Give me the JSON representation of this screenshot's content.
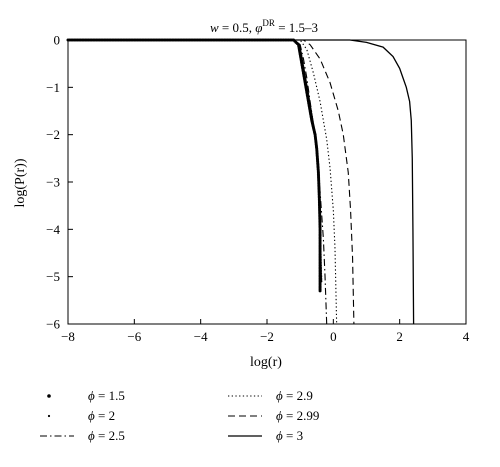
{
  "chart_data": {
    "type": "line",
    "title": "w = 0.5, φ^DR = 1.5–3",
    "title_parts": {
      "w_symbol": "w",
      "w_eq": " = 0.5, ",
      "phi_symbol": "φ",
      "phi_sup": "DR",
      "phi_range": " = 1.5–3"
    },
    "xlabel": "log(r)",
    "ylabel": "log(P(r))",
    "xlim": [
      -8,
      4
    ],
    "ylim": [
      -6,
      0
    ],
    "xticks": [
      -8,
      -6,
      -4,
      -2,
      0,
      2,
      4
    ],
    "yticks": [
      0,
      -1,
      -2,
      -3,
      -4,
      -5,
      -6
    ],
    "xtick_labels": [
      "−8",
      "−6",
      "−4",
      "−2",
      "0",
      "2",
      "4"
    ],
    "ytick_labels": [
      "0",
      "−1",
      "−2",
      "−3",
      "−4",
      "−5",
      "−6"
    ],
    "grid": false,
    "legend_placement": "bottom",
    "series": [
      {
        "name": "ϕ = 1.5",
        "symbol": "ϕ",
        "value_text": " = 1.5",
        "style": "large-dots",
        "color": "#000000",
        "x": [
          -8.0,
          -7.0,
          -6.0,
          -5.0,
          -4.0,
          -3.0,
          -2.0,
          -1.5,
          -1.2,
          -1.05,
          -0.95,
          -0.85,
          -0.75,
          -0.7,
          -0.65,
          -0.6,
          -0.55,
          -0.5,
          -0.45,
          -0.42,
          -0.4,
          -0.4,
          -0.4,
          -0.4,
          -0.4
        ],
        "y": [
          0,
          0,
          0,
          0,
          0,
          0,
          0,
          0,
          0,
          -0.1,
          -0.5,
          -0.9,
          -1.3,
          -1.5,
          -1.7,
          -1.85,
          -2.0,
          -2.3,
          -2.8,
          -3.4,
          -4.0,
          -4.5,
          -4.9,
          -5.1,
          -5.3
        ]
      },
      {
        "name": "ϕ = 2",
        "symbol": "ϕ",
        "value_text": " = 2",
        "style": "small-dots",
        "color": "#000000",
        "x": [
          -8.0,
          -7.0,
          -6.0,
          -5.0,
          -4.0,
          -3.0,
          -2.0,
          -1.5,
          -1.2,
          -1.02,
          -0.92,
          -0.82,
          -0.72,
          -0.66,
          -0.6,
          -0.55,
          -0.5,
          -0.45,
          -0.42,
          -0.4,
          -0.38,
          -0.37,
          -0.36
        ],
        "y": [
          0,
          0,
          0,
          0,
          0,
          0,
          0,
          0,
          0,
          -0.1,
          -0.5,
          -0.9,
          -1.3,
          -1.55,
          -1.8,
          -2.0,
          -2.4,
          -2.9,
          -3.5,
          -4.1,
          -4.6,
          -4.9,
          -5.1
        ]
      },
      {
        "name": "ϕ = 2.5",
        "symbol": "ϕ",
        "value_text": " = 2.5",
        "style": "dash-dot",
        "color": "#000000",
        "x": [
          -8.0,
          -1.2,
          -1.0,
          -0.9,
          -0.8,
          -0.7,
          -0.6,
          -0.5,
          -0.4,
          -0.3,
          -0.25,
          -0.2
        ],
        "y": [
          0,
          0,
          -0.1,
          -0.4,
          -0.8,
          -1.3,
          -1.8,
          -2.4,
          -3.2,
          -4.2,
          -5.0,
          -6.0
        ]
      },
      {
        "name": "ϕ = 2.9",
        "symbol": "ϕ",
        "value_text": " = 2.9",
        "style": "dotted",
        "color": "#000000",
        "x": [
          -8.0,
          -1.0,
          -0.8,
          -0.6,
          -0.4,
          -0.2,
          -0.1,
          0.0,
          0.05,
          0.1
        ],
        "y": [
          0,
          0,
          -0.2,
          -0.7,
          -1.3,
          -2.1,
          -2.7,
          -3.6,
          -4.4,
          -6.0
        ]
      },
      {
        "name": "ϕ = 2.99",
        "symbol": "ϕ",
        "value_text": " = 2.99",
        "style": "dashed",
        "color": "#000000",
        "x": [
          -8.0,
          -0.9,
          -0.7,
          -0.4,
          -0.1,
          0.15,
          0.3,
          0.45,
          0.52,
          0.58,
          0.62
        ],
        "y": [
          0,
          0,
          -0.1,
          -0.4,
          -0.9,
          -1.5,
          -2.0,
          -2.8,
          -3.6,
          -4.6,
          -6.0
        ]
      },
      {
        "name": "ϕ = 3",
        "symbol": "ϕ",
        "value_text": " = 3",
        "style": "solid",
        "color": "#000000",
        "x": [
          -8.0,
          0.5,
          1.0,
          1.5,
          1.8,
          2.0,
          2.1,
          2.2,
          2.3,
          2.35,
          2.38,
          2.4,
          2.42
        ],
        "y": [
          0,
          0,
          -0.05,
          -0.15,
          -0.35,
          -0.6,
          -0.8,
          -1.0,
          -1.3,
          -1.7,
          -2.5,
          -4.0,
          -6.0
        ]
      }
    ]
  }
}
